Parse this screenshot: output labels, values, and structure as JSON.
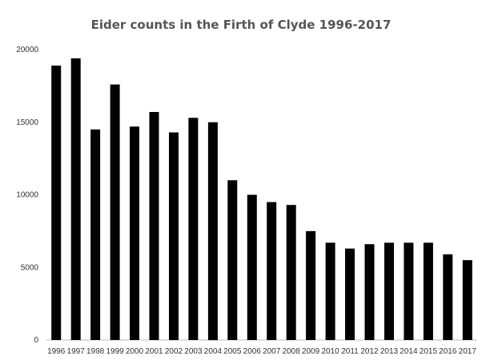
{
  "chart_data": {
    "type": "bar",
    "title": "Eider counts in the Firth of Clyde 1996-2017",
    "xlabel": "",
    "ylabel": "",
    "categories": [
      "1996",
      "1997",
      "1998",
      "1999",
      "2000",
      "2001",
      "2002",
      "2003",
      "2004",
      "2005",
      "2006",
      "2007",
      "2008",
      "2009",
      "2010",
      "2011",
      "2012",
      "2013",
      "2014",
      "2015",
      "2016",
      "2017"
    ],
    "values": [
      18900,
      19400,
      14500,
      17600,
      14700,
      15700,
      14300,
      15300,
      15000,
      11000,
      10000,
      9500,
      9300,
      7500,
      6700,
      6300,
      6600,
      6700,
      6700,
      6700,
      5900,
      5500
    ],
    "ylim": [
      0,
      20000
    ],
    "yticks": [
      0,
      5000,
      10000,
      15000,
      20000
    ],
    "grid": false,
    "legend": "none",
    "bar_color": "#000000"
  }
}
